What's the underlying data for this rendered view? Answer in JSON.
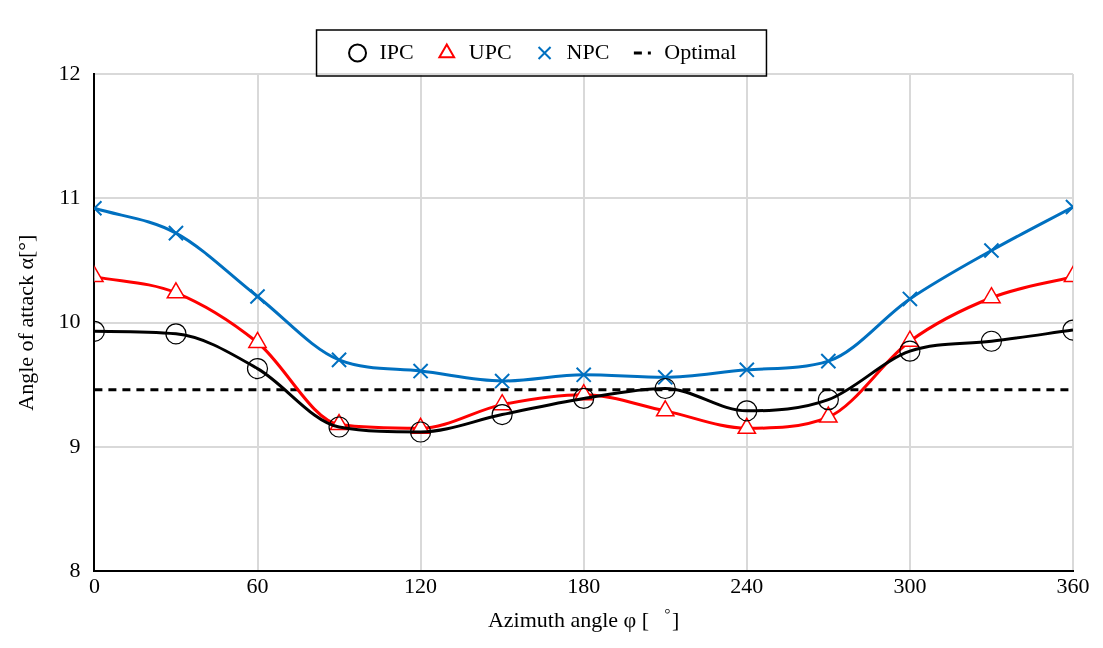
{
  "chart_data": {
    "type": "line",
    "xlabel": "Azimuth angle φ [゜]",
    "ylabel": "Angle of attack α[°]",
    "x": [
      0,
      30,
      60,
      90,
      120,
      150,
      180,
      210,
      240,
      270,
      300,
      330,
      360
    ],
    "xlim": [
      0,
      360
    ],
    "xticks": [
      0,
      60,
      120,
      180,
      240,
      300,
      360
    ],
    "ylim": [
      8,
      12
    ],
    "yticks": [
      8,
      9,
      10,
      11,
      12
    ],
    "grid": true,
    "legend": "top",
    "series": [
      {
        "name": "IPC",
        "color": "#000000",
        "marker": "circle",
        "values": [
          9.93,
          9.91,
          9.63,
          9.16,
          9.12,
          9.26,
          9.39,
          9.47,
          9.29,
          9.38,
          9.77,
          9.85,
          9.94
        ]
      },
      {
        "name": "UPC",
        "color": "#ff0000",
        "marker": "triangle",
        "values": [
          10.37,
          10.24,
          9.84,
          9.18,
          9.15,
          9.34,
          9.42,
          9.29,
          9.15,
          9.24,
          9.85,
          10.2,
          10.37
        ]
      },
      {
        "name": "NPC",
        "color": "#0070c0",
        "marker": "cross",
        "values": [
          10.92,
          10.72,
          10.21,
          9.7,
          9.61,
          9.53,
          9.58,
          9.56,
          9.62,
          9.69,
          10.19,
          10.58,
          10.93
        ]
      },
      {
        "name": "Optimal",
        "color": "#000000",
        "marker": "none",
        "line_style": "dashed",
        "x": [
          0,
          360
        ],
        "values": [
          9.46,
          9.46
        ]
      }
    ]
  }
}
